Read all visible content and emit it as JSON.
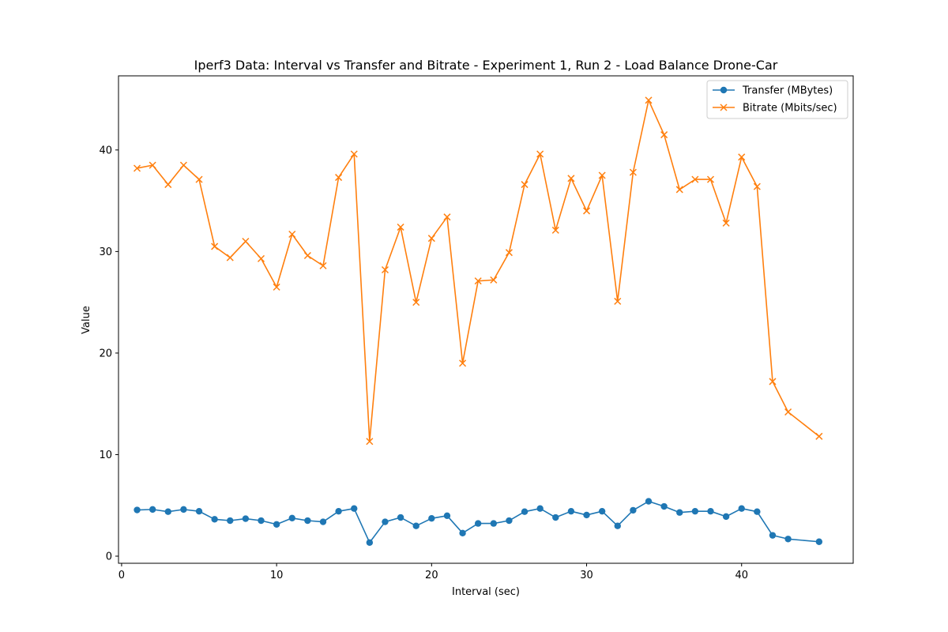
{
  "chart_data": {
    "type": "line",
    "title": "Iperf3 Data: Interval vs Transfer and Bitrate  - Experiment 1, Run 2 - Load Balance Drone-Car",
    "xlabel": "Interval (sec)",
    "ylabel": "Value",
    "xlim": [
      -0.2,
      47.2
    ],
    "ylim": [
      -0.7,
      47.3
    ],
    "xticks": [
      0,
      10,
      20,
      30,
      40
    ],
    "yticks": [
      0,
      10,
      20,
      30,
      40
    ],
    "grid": false,
    "legend_position": "top-right",
    "x": [
      1,
      2,
      3,
      4,
      5,
      6,
      7,
      8,
      9,
      10,
      11,
      12,
      13,
      14,
      15,
      16,
      17,
      18,
      19,
      20,
      21,
      22,
      23,
      24,
      25,
      26,
      27,
      28,
      29,
      30,
      31,
      32,
      33,
      34,
      35,
      36,
      37,
      38,
      39,
      40,
      41,
      42,
      43,
      45
    ],
    "series": [
      {
        "name": "Transfer (MBytes)",
        "color": "#1f77b4",
        "marker": "circle",
        "values": [
          4.55,
          4.6,
          4.38,
          4.6,
          4.42,
          3.63,
          3.5,
          3.69,
          3.5,
          3.13,
          3.75,
          3.5,
          3.38,
          4.42,
          4.69,
          1.34,
          3.38,
          3.81,
          2.98,
          3.72,
          3.98,
          2.27,
          3.22,
          3.22,
          3.5,
          4.38,
          4.69,
          3.81,
          4.42,
          4.05,
          4.42,
          2.98,
          4.52,
          5.4,
          4.9,
          4.3,
          4.42,
          4.42,
          3.9,
          4.69,
          4.38,
          2.05,
          1.69,
          1.42
        ]
      },
      {
        "name": "Bitrate (Mbits/sec)",
        "color": "#ff7f0e",
        "marker": "x",
        "values": [
          38.2,
          38.5,
          36.6,
          38.5,
          37.1,
          30.5,
          29.4,
          31.0,
          29.3,
          26.5,
          31.7,
          29.6,
          28.6,
          37.3,
          39.6,
          11.3,
          28.2,
          32.4,
          25.0,
          31.3,
          33.4,
          19.0,
          27.1,
          27.2,
          29.9,
          36.6,
          39.6,
          32.1,
          37.2,
          34.0,
          37.5,
          25.1,
          37.8,
          44.9,
          41.5,
          36.1,
          37.1,
          37.1,
          32.8,
          39.3,
          36.4,
          17.2,
          14.2,
          11.8
        ]
      }
    ]
  }
}
